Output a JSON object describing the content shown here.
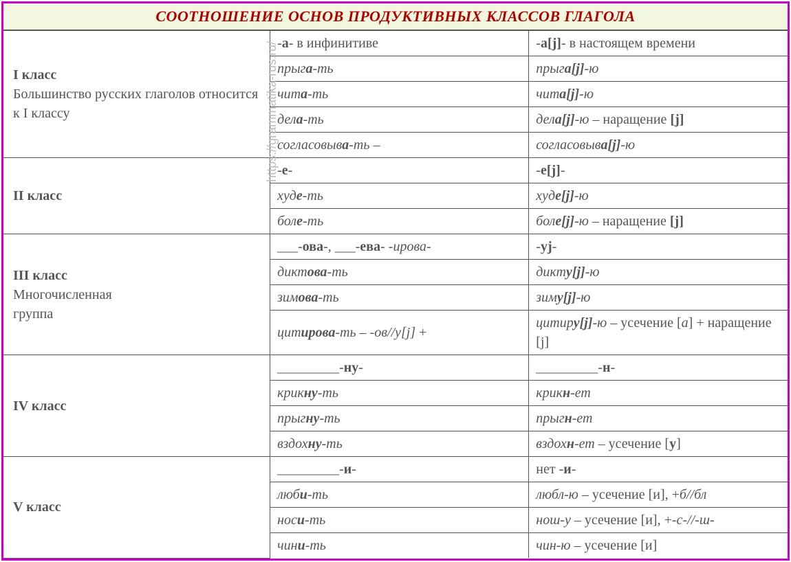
{
  "title": "СООТНОШЕНИЕ ОСНОВ ПРОДУКТИВНЫХ КЛАССОВ ГЛАГОЛА",
  "watermark": "https://grammatika-rus.ru/",
  "colors": {
    "frame": "#cc00cc",
    "title_bg": "#f2f8e0",
    "title_text": "#b00000",
    "cell_text": "#555555",
    "border": "#555555"
  },
  "col_widths": [
    "34%",
    "33%",
    "33%"
  ],
  "classes": [
    {
      "label_html": "<span class='cls'>I класс</span><br>Большинство русских глаголов относится к I классу",
      "rows": [
        [
          "-<b>а</b>- в инфинитиве",
          "-<b>а[j]</b>- в настоящем времени"
        ],
        [
          "<i>прыг<b>а</b>-ть</i>",
          "<i>прыг<b>а[j]</b>-ю</i>"
        ],
        [
          "<i>чит<b>а</b>-ть</i>",
          "<i>чит<b>а[j]</b>-ю</i>"
        ],
        [
          "<i>дел<b>а</b>-ть</i>",
          "<i>дел<b>а[j]</b>-ю</i> – наращение <b>[j]</b>"
        ],
        [
          "<i>согласовыв<b>а</b>-ть</i> –",
          "<i>согласовыв<b>а[j]</b>-ю</i>"
        ]
      ]
    },
    {
      "label_html": "<span class='cls'>II класс</span>",
      "rows": [
        [
          "-<b>е</b>-",
          "-<b>е[j]</b>-"
        ],
        [
          "<i>худ<b>е</b>-ть</i>",
          "<i>худ<b>е[j]</b>-ю</i>"
        ],
        [
          "<i>бол<b>е</b>-ть</i>",
          "<i>бол<b>е[j]</b>-ю</i> – наращение <b>[j]</b>"
        ]
      ]
    },
    {
      "label_html": "<span class='cls'>III класс</span><br>Многочисленная<br>группа",
      "rows": [
        [
          "___-<b>ова</b>-<i>,</i> ___-<b>ева</b>- <i>-ирова-</i>",
          "-<b>уj</b>-"
        ],
        [
          "<i>дикт<b>ова</b>-ть</i>",
          "<i>дикт<b>у[j]</b>-ю</i>"
        ],
        [
          "<i>зим<b>ова</b>-ть</i>",
          "<i>зим<b>у[j]</b>-ю</i>"
        ],
        [
          "<i>цит<b>ирова</b>-ть – -ов//у[j]</i> +",
          "<i>цитир<b>у[j]</b>-ю</i> – усечение [<i>а</i>] + наращение [j]"
        ]
      ]
    },
    {
      "label_html": "<span class='cls'>IV класс</span>",
      "rows": [
        [
          "_________-<b>ну</b>-",
          "_________-<b>н</b>-"
        ],
        [
          "<i>крик<b>ну</b>-ть</i>",
          "<i>крик<b>н</b>-ет</i>"
        ],
        [
          "<i>прыг<b>ну</b>-ть</i>",
          "<i>прыг<b>н</b>-ет</i>"
        ],
        [
          "<i>вздох<b>ну</b>-ть</i>",
          "<i>вздох<b>н</b>-ет</i> – усечение [<b>у</b>]"
        ]
      ]
    },
    {
      "label_html": "<span class='cls'>V класс</span>",
      "rows": [
        [
          "_________-<b>и</b>-",
          "нет -<b>и</b>-"
        ],
        [
          "<i>люб<b>и</b>-ть</i>",
          "<i>любл-ю</i> – усечение [и], +<i>б//бл</i>"
        ],
        [
          "<i>нос<b>и</b>-ть</i>",
          "<i>нош-у</i> – усечение [и], +<i>-с-//-ш-</i>"
        ],
        [
          "<i>чин<b>и</b>-ть</i>",
          "<i>чин-ю</i> – усечение [и]"
        ]
      ]
    }
  ]
}
